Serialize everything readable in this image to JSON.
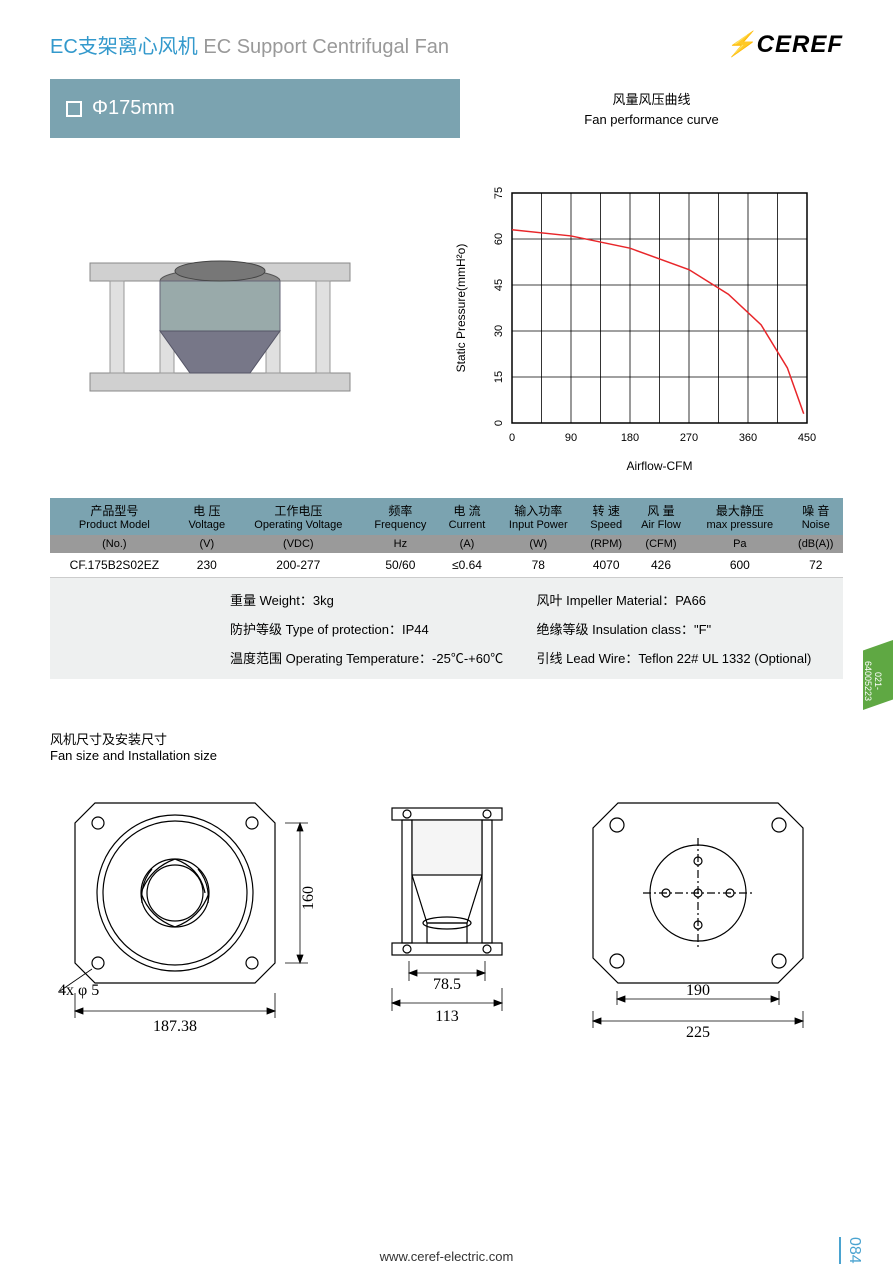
{
  "header": {
    "title_cn": "EC支架离心风机",
    "title_en": "EC Support Centrifugal Fan",
    "logo_text": "CEREF"
  },
  "banner": {
    "size": "Φ175mm",
    "curve_label_cn": "风量风压曲线",
    "curve_label_en": "Fan performance curve"
  },
  "chart": {
    "type": "line",
    "xlabel": "Airflow-CFM",
    "ylabel": "Static Pressure(mmH²o)",
    "xlim": [
      0,
      450
    ],
    "ylim": [
      0,
      75
    ],
    "xticks": [
      0,
      90,
      180,
      270,
      360,
      450
    ],
    "yticks": [
      0,
      15,
      30,
      45,
      60,
      75
    ],
    "grid_color": "#000000",
    "line_color": "#e8262a",
    "line_width": 1.5,
    "background_color": "#ffffff",
    "label_fontsize": 12,
    "tick_fontsize": 11,
    "data": [
      {
        "x": 0,
        "y": 63
      },
      {
        "x": 90,
        "y": 61
      },
      {
        "x": 180,
        "y": 57
      },
      {
        "x": 270,
        "y": 50
      },
      {
        "x": 330,
        "y": 42
      },
      {
        "x": 380,
        "y": 32
      },
      {
        "x": 420,
        "y": 18
      },
      {
        "x": 445,
        "y": 3
      }
    ]
  },
  "table": {
    "headers": [
      {
        "cn": "产品型号",
        "en": "Product Model",
        "unit": "(No.)"
      },
      {
        "cn": "电 压",
        "en": "Voltage",
        "unit": "(V)"
      },
      {
        "cn": "工作电压",
        "en": "Operating Voltage",
        "unit": "(VDC)"
      },
      {
        "cn": "频率",
        "en": "Frequency",
        "unit": "Hz"
      },
      {
        "cn": "电 流",
        "en": "Current",
        "unit": "(A)"
      },
      {
        "cn": "输入功率",
        "en": "Input Power",
        "unit": "(W)"
      },
      {
        "cn": "转 速",
        "en": "Speed",
        "unit": "(RPM)"
      },
      {
        "cn": "风 量",
        "en": "Air Flow",
        "unit": "(CFM)"
      },
      {
        "cn": "最大静压",
        "en": "max pressure",
        "unit": "Pa"
      },
      {
        "cn": "噪 音",
        "en": "Noise",
        "unit": "(dB(A))"
      }
    ],
    "row": [
      "CF.175B2S02EZ",
      "230",
      "200-277",
      "50/60",
      "≤0.64",
      "78",
      "4070",
      "426",
      "600",
      "72"
    ]
  },
  "extra": {
    "weight": "重量 Weight：3kg",
    "impeller": "风叶 Impeller Material：PA66",
    "protection": "防护等级 Type of protection：IP44",
    "insulation": "绝缘等级 Insulation class：\"F\"",
    "temp": "温度范围 Operating Temperature：-25℃-+60℃",
    "leadwire": "引线 Lead Wire：Teflon 22# UL  1332  (Optional)"
  },
  "size_section": {
    "cn": "风机尺寸及安装尺寸",
    "en": "Fan size and Installation size"
  },
  "dimensions": {
    "view1": {
      "width": "187.38",
      "height": "160",
      "holes": "4x φ 5"
    },
    "view2": {
      "width": "113",
      "inner": "78.5"
    },
    "view3": {
      "width": "225",
      "inner": "190"
    }
  },
  "footer": {
    "url": "www.ceref-electric.com",
    "page": "084"
  },
  "side_tag": "021-64005223",
  "colors": {
    "accent_blue": "#3399cc",
    "banner_teal": "#7ba3b0",
    "brand_green": "#5fa843",
    "chart_red": "#e8262a",
    "gray_band": "#9a9a9a",
    "light_gray": "#eef0f0"
  }
}
